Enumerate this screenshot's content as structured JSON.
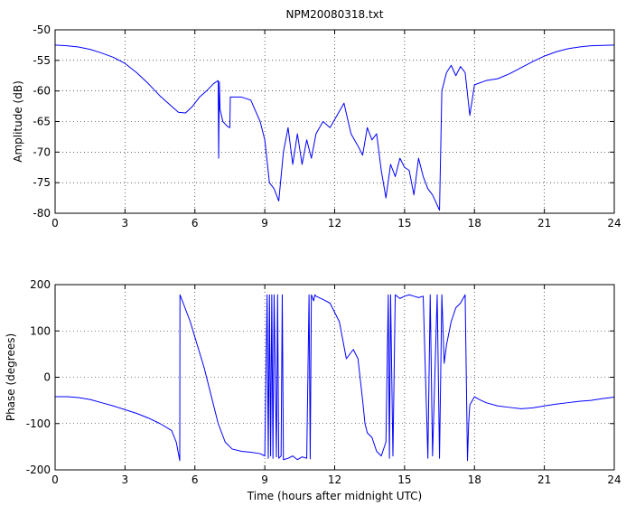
{
  "figure": {
    "title": "NPM20080318.txt",
    "xlabel": "Time (hours after midnight UTC)"
  },
  "chart_data": [
    {
      "type": "line",
      "title": "NPM20080318.txt",
      "xlabel": "",
      "ylabel": "Amplitude (dB)",
      "xlim": [
        0,
        24
      ],
      "ylim": [
        -80,
        -50
      ],
      "xticks": [
        0,
        3,
        6,
        9,
        12,
        15,
        18,
        21,
        24
      ],
      "yticks": [
        -80,
        -75,
        -70,
        -65,
        -60,
        -55,
        -50
      ],
      "grid": true,
      "line_color": "#0000ff",
      "series": [
        {
          "x": [
            0,
            0.5,
            1,
            1.5,
            2,
            2.5,
            3,
            3.5,
            4,
            4.5,
            5,
            5.3,
            5.6,
            5.9,
            6.2,
            6.5,
            6.8,
            7.0,
            7.02,
            7.05,
            7.08,
            7.2,
            7.4,
            7.5,
            7.52,
            7.6,
            8.0,
            8.4,
            8.8,
            9.0,
            9.2,
            9.4,
            9.6,
            9.8,
            10.0,
            10.2,
            10.4,
            10.6,
            10.8,
            11.0,
            11.2,
            11.5,
            11.8,
            12.1,
            12.4,
            12.7,
            13.0,
            13.2,
            13.4,
            13.6,
            13.8,
            14.0,
            14.2,
            14.4,
            14.6,
            14.8,
            15.0,
            15.2,
            15.4,
            15.6,
            15.8,
            16.0,
            16.2,
            16.5,
            16.6,
            16.8,
            17.0,
            17.2,
            17.4,
            17.6,
            17.8,
            18.0,
            18.5,
            19,
            19.5,
            20,
            20.5,
            21,
            21.5,
            22,
            22.5,
            23,
            23.5,
            24
          ],
          "y": [
            -52.5,
            -52.6,
            -52.8,
            -53.2,
            -53.8,
            -54.5,
            -55.5,
            -57,
            -58.8,
            -60.8,
            -62.5,
            -63.5,
            -63.6,
            -62.5,
            -61,
            -60,
            -58.8,
            -58.3,
            -71,
            -58.5,
            -63,
            -65,
            -65.8,
            -66,
            -61,
            -61,
            -61,
            -61.5,
            -65,
            -68,
            -75,
            -76,
            -78,
            -70,
            -66,
            -72,
            -67,
            -72,
            -68,
            -71,
            -67,
            -65,
            -66,
            -64,
            -62,
            -67,
            -69,
            -70.5,
            -66,
            -68,
            -67,
            -73,
            -77.5,
            -72,
            -74,
            -71,
            -72.5,
            -73,
            -77,
            -71,
            -74,
            -76,
            -77,
            -79.5,
            -60,
            -57,
            -55.8,
            -57.5,
            -56,
            -57,
            -64,
            -59,
            -58.3,
            -58,
            -57.2,
            -56.2,
            -55.2,
            -54.3,
            -53.6,
            -53.1,
            -52.8,
            -52.6,
            -52.55,
            -52.5
          ]
        }
      ]
    },
    {
      "type": "line",
      "title": "",
      "xlabel": "Time (hours after midnight UTC)",
      "ylabel": "Phase (degrees)",
      "xlim": [
        0,
        24
      ],
      "ylim": [
        -200,
        200
      ],
      "xticks": [
        0,
        3,
        6,
        9,
        12,
        15,
        18,
        21,
        24
      ],
      "yticks": [
        -200,
        -100,
        0,
        100,
        200
      ],
      "grid": true,
      "line_color": "#0000ff",
      "series": [
        {
          "x": [
            0,
            0.5,
            1,
            1.5,
            2,
            2.5,
            3,
            3.5,
            4,
            4.5,
            5,
            5.2,
            5.35,
            5.36,
            5.5,
            5.8,
            6.1,
            6.4,
            6.7,
            7.0,
            7.3,
            7.6,
            8.0,
            8.4,
            8.8,
            9.0,
            9.1,
            9.15,
            9.2,
            9.25,
            9.3,
            9.35,
            9.4,
            9.5,
            9.55,
            9.6,
            9.7,
            9.75,
            9.8,
            10.0,
            10.2,
            10.4,
            10.6,
            10.8,
            10.9,
            10.95,
            11.0,
            11.1,
            11.15,
            11.2,
            11.5,
            11.8,
            12.0,
            12.2,
            12.5,
            12.8,
            13.0,
            13.2,
            13.3,
            13.4,
            13.6,
            13.8,
            14.0,
            14.2,
            14.3,
            14.35,
            14.4,
            14.5,
            14.6,
            14.8,
            15.0,
            15.2,
            15.4,
            15.6,
            15.8,
            16.0,
            16.1,
            16.2,
            16.4,
            16.5,
            16.6,
            16.7,
            16.8,
            17.0,
            17.2,
            17.4,
            17.6,
            17.7,
            17.75,
            17.8,
            18.0,
            18.2,
            18.5,
            19,
            19.5,
            20,
            20.5,
            21,
            21.5,
            22,
            22.5,
            23,
            23.5,
            24
          ],
          "y": [
            -42,
            -42,
            -44,
            -48,
            -55,
            -62,
            -70,
            -78,
            -88,
            -100,
            -115,
            -140,
            -180,
            178,
            160,
            120,
            70,
            20,
            -40,
            -100,
            -140,
            -155,
            -160,
            -162,
            -165,
            -170,
            178,
            -175,
            178,
            -170,
            178,
            -175,
            178,
            -172,
            178,
            -175,
            -170,
            178,
            -178,
            -175,
            -170,
            -178,
            -172,
            -175,
            178,
            -176,
            178,
            165,
            178,
            175,
            168,
            160,
            140,
            120,
            40,
            60,
            40,
            -50,
            -100,
            -120,
            -130,
            -160,
            -170,
            -140,
            178,
            -175,
            178,
            -170,
            178,
            170,
            175,
            178,
            175,
            172,
            175,
            -175,
            178,
            -170,
            178,
            -175,
            178,
            30,
            70,
            120,
            150,
            160,
            178,
            -180,
            -100,
            -60,
            -42,
            -48,
            -55,
            -62,
            -65,
            -68,
            -66,
            -62,
            -58,
            -55,
            -52,
            -50,
            -46,
            -43
          ]
        }
      ]
    }
  ]
}
